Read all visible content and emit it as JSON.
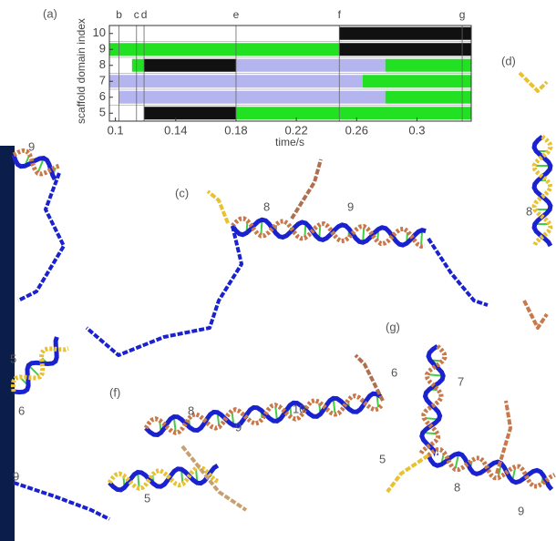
{
  "chart_data": {
    "type": "timeline",
    "xlabel": "time/s",
    "ylabel": "scaffold domain index",
    "xlim": [
      0.096,
      0.336
    ],
    "xticks": [
      0.1,
      0.14,
      0.18,
      0.22,
      0.26,
      0.3
    ],
    "ylim": [
      4.5,
      10.5
    ],
    "yticks": [
      5,
      6,
      7,
      8,
      9,
      10
    ],
    "markers": [
      {
        "label": "b",
        "value": 0.1024
      },
      {
        "label": "c",
        "value": 0.114
      },
      {
        "label": "d",
        "value": 0.119
      },
      {
        "label": "e",
        "value": 0.18
      },
      {
        "label": "f",
        "value": 0.2485
      },
      {
        "label": "g",
        "value": 0.33
      }
    ],
    "rows": [
      {
        "index": 10,
        "segments": [
          {
            "start": 0.2485,
            "end": 0.336,
            "color": "#111111"
          }
        ]
      },
      {
        "index": 9,
        "segments": [
          {
            "start": 0.096,
            "end": 0.2485,
            "color": "#22e022"
          },
          {
            "start": 0.2485,
            "end": 0.336,
            "color": "#111111"
          }
        ]
      },
      {
        "index": 8,
        "segments": [
          {
            "start": 0.111,
            "end": 0.119,
            "color": "#22e022"
          },
          {
            "start": 0.119,
            "end": 0.18,
            "color": "#111111"
          },
          {
            "start": 0.18,
            "end": 0.279,
            "color": "#b4b4ee"
          },
          {
            "start": 0.279,
            "end": 0.336,
            "color": "#22e022"
          }
        ]
      },
      {
        "index": 7,
        "segments": [
          {
            "start": 0.096,
            "end": 0.264,
            "color": "#b4b4ee"
          },
          {
            "start": 0.264,
            "end": 0.336,
            "color": "#22e022"
          }
        ]
      },
      {
        "index": 6,
        "segments": [
          {
            "start": 0.102,
            "end": 0.279,
            "color": "#b4b4ee"
          },
          {
            "start": 0.279,
            "end": 0.336,
            "color": "#22e022"
          }
        ]
      },
      {
        "index": 5,
        "segments": [
          {
            "start": 0.119,
            "end": 0.18,
            "color": "#111111"
          },
          {
            "start": 0.18,
            "end": 0.336,
            "color": "#22e022"
          }
        ]
      }
    ]
  },
  "annotations": [
    "(a)",
    "(d)",
    "(c)",
    "8",
    "9",
    "9",
    "8",
    "5",
    "6",
    "(g)",
    "6",
    "7",
    "(f)",
    "8",
    "9",
    "10",
    "5",
    "8",
    "9",
    "9",
    "5"
  ]
}
